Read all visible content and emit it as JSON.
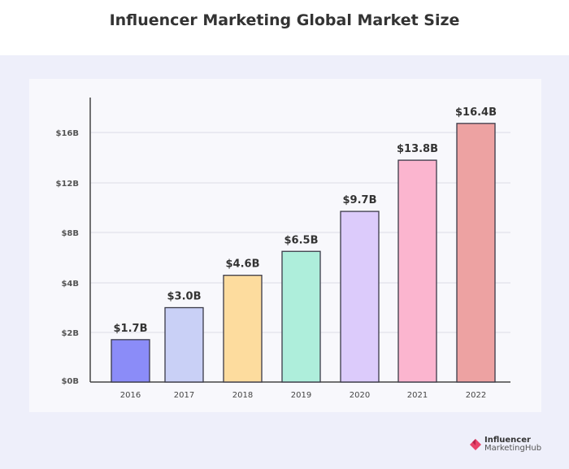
{
  "title": "Influencer Marketing Global Market Size",
  "chart_data": {
    "type": "bar",
    "title": "Influencer Marketing Global Market Size",
    "xlabel": "",
    "ylabel": "",
    "categories": [
      "2016",
      "2017",
      "2018",
      "2019",
      "2020",
      "2021",
      "2022"
    ],
    "values": [
      1.7,
      3.0,
      4.6,
      6.5,
      9.7,
      13.8,
      16.4
    ],
    "data_labels": [
      "$1.7B",
      "$3.0B",
      "$4.6B",
      "$6.5B",
      "$9.7B",
      "$13.8B",
      "$16.4B"
    ],
    "colors": [
      "#8b8cf8",
      "#c9d0f6",
      "#fddc9e",
      "#aeeedb",
      "#dccbfb",
      "#fbb5cf",
      "#eda2a2"
    ],
    "y_ticks": [
      0,
      2,
      4,
      8,
      12,
      16
    ],
    "y_tick_labels": [
      "$0B",
      "$2B",
      "$4B",
      "$8B",
      "$12B",
      "$16B"
    ],
    "grid": true,
    "legend": "none"
  },
  "logo": {
    "line1": "Influencer",
    "line2": "MarketingHub",
    "color": "#e8436a"
  }
}
